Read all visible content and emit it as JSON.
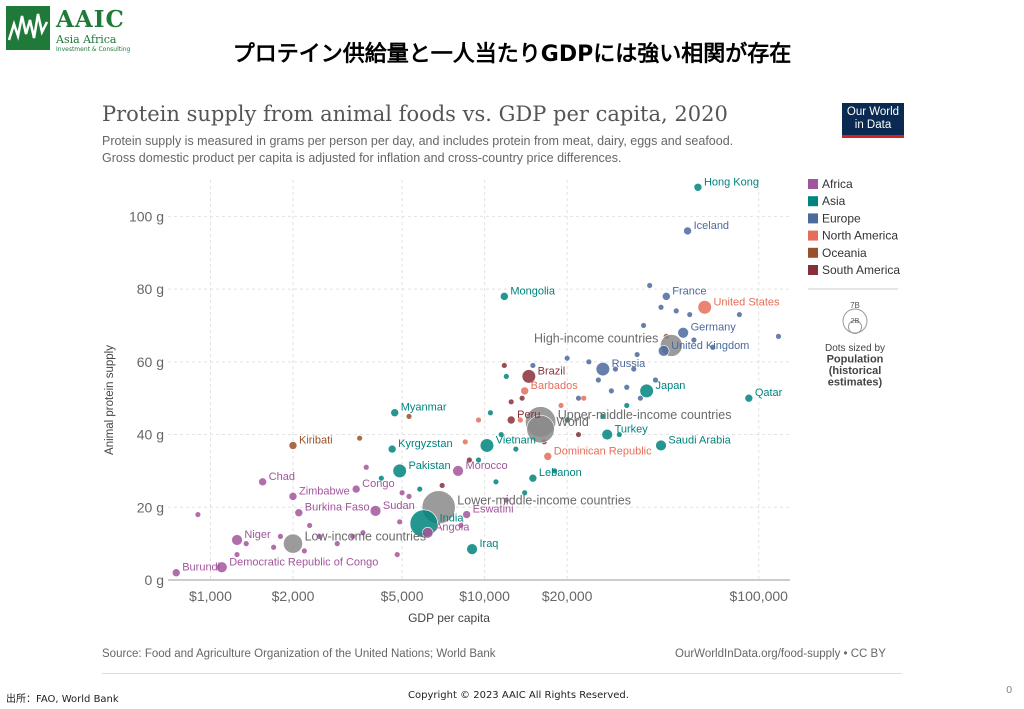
{
  "header": {
    "logo_text": "AAIC",
    "logo_sub1": "Asia Africa",
    "logo_sub2": "Investment & Consulting",
    "slide_title": "プロテイン供給量と一人当たりGDPには強い相関が存在"
  },
  "chart_header": {
    "title": "Protein supply from animal foods vs. GDP per capita, 2020",
    "subtitle1": "Protein supply is measured in grams per person per day, and includes protein from meat, dairy, eggs and seafood.",
    "subtitle2": "Gross domestic product per capita is adjusted for inflation and cross-country price differences.",
    "badge_line1": "Our World",
    "badge_line2": "in Data"
  },
  "legend": {
    "items": [
      {
        "name": "Africa",
        "color": "#a2559c"
      },
      {
        "name": "Asia",
        "color": "#00847e"
      },
      {
        "name": "Europe",
        "color": "#4c6a9c"
      },
      {
        "name": "North America",
        "color": "#e56e5a"
      },
      {
        "name": "Oceania",
        "color": "#9a5129"
      },
      {
        "name": "South America",
        "color": "#883039"
      }
    ],
    "size_big": "7B",
    "size_small": "2B",
    "size_caption1": "Dots sized by",
    "size_caption2": "Population",
    "size_caption3": "(historical",
    "size_caption4": "estimates)"
  },
  "chart_data": {
    "type": "scatter",
    "title": "Protein supply from animal foods vs. GDP per capita, 2020",
    "xlabel": "GDP per capita",
    "ylabel": "Animal protein supply",
    "x_scale": "log",
    "xlim": [
      700,
      130000
    ],
    "ylim": [
      0,
      110
    ],
    "x_ticks": [
      {
        "value": 1000,
        "label": "$1,000"
      },
      {
        "value": 2000,
        "label": "$2,000"
      },
      {
        "value": 5000,
        "label": "$5,000"
      },
      {
        "value": 10000,
        "label": "$10,000"
      },
      {
        "value": 20000,
        "label": "$20,000"
      },
      {
        "value": 100000,
        "label": "$100,000"
      }
    ],
    "y_ticks": [
      {
        "value": 0,
        "label": "0 g"
      },
      {
        "value": 20,
        "label": "20 g"
      },
      {
        "value": 40,
        "label": "40 g"
      },
      {
        "value": 60,
        "label": "60 g"
      },
      {
        "value": 80,
        "label": "80 g"
      },
      {
        "value": 100,
        "label": "100 g"
      }
    ],
    "colors": {
      "Africa": "#a2559c",
      "Asia": "#00847e",
      "Europe": "#4c6a9c",
      "North America": "#e56e5a",
      "Oceania": "#9a5129",
      "South America": "#883039",
      "Aggregate": "#8a8a8a"
    },
    "labeled_points": [
      {
        "label": "Hong Kong",
        "region": "Asia",
        "x": 60000,
        "y": 108,
        "size": 2,
        "anchor": "right"
      },
      {
        "label": "Iceland",
        "region": "Europe",
        "x": 55000,
        "y": 96,
        "size": 2,
        "anchor": "right"
      },
      {
        "label": "Mongolia",
        "region": "Asia",
        "x": 11800,
        "y": 78,
        "size": 2,
        "anchor": "right"
      },
      {
        "label": "France",
        "region": "Europe",
        "x": 46000,
        "y": 78,
        "size": 2,
        "anchor": "right"
      },
      {
        "label": "United States",
        "region": "North America",
        "x": 63500,
        "y": 75,
        "size": 4,
        "anchor": "right"
      },
      {
        "label": "Germany",
        "region": "Europe",
        "x": 53000,
        "y": 68,
        "size": 3,
        "anchor": "right"
      },
      {
        "label": "High-income countries",
        "region": "Aggregate",
        "x": 48000,
        "y": 64.5,
        "size": 7,
        "anchor": "left"
      },
      {
        "label": "United Kingdom",
        "region": "Europe",
        "x": 45000,
        "y": 63,
        "size": 3,
        "anchor": "right"
      },
      {
        "label": "Russia",
        "region": "Europe",
        "x": 27000,
        "y": 58,
        "size": 4,
        "anchor": "right"
      },
      {
        "label": "Brazil",
        "region": "South America",
        "x": 14500,
        "y": 56,
        "size": 4,
        "anchor": "right"
      },
      {
        "label": "Barbados",
        "region": "North America",
        "x": 14000,
        "y": 52,
        "size": 2,
        "anchor": "right"
      },
      {
        "label": "Japan",
        "region": "Asia",
        "x": 39000,
        "y": 52,
        "size": 4,
        "anchor": "right"
      },
      {
        "label": "Qatar",
        "region": "Asia",
        "x": 92000,
        "y": 50,
        "size": 2,
        "anchor": "right"
      },
      {
        "label": "Myanmar",
        "region": "Asia",
        "x": 4700,
        "y": 46,
        "size": 2,
        "anchor": "right"
      },
      {
        "label": "Upper-middle-income countries",
        "region": "Aggregate",
        "x": 16000,
        "y": 43.5,
        "size": 10,
        "anchor": "right"
      },
      {
        "label": "Peru",
        "region": "South America",
        "x": 12500,
        "y": 44,
        "size": 2,
        "anchor": "right"
      },
      {
        "label": "Turkey",
        "region": "Asia",
        "x": 28000,
        "y": 40,
        "size": 3,
        "anchor": "right"
      },
      {
        "label": "World",
        "region": "Aggregate",
        "x": 16000,
        "y": 41.5,
        "size": 9,
        "anchor": "right"
      },
      {
        "label": "Kiribati",
        "region": "Oceania",
        "x": 2000,
        "y": 37,
        "size": 2,
        "anchor": "right"
      },
      {
        "label": "Kyrgyzstan",
        "region": "Asia",
        "x": 4600,
        "y": 36,
        "size": 2,
        "anchor": "right"
      },
      {
        "label": "Vietnam",
        "region": "Asia",
        "x": 10200,
        "y": 37,
        "size": 4,
        "anchor": "right"
      },
      {
        "label": "Saudi Arabia",
        "region": "Asia",
        "x": 44000,
        "y": 37,
        "size": 3,
        "anchor": "right"
      },
      {
        "label": "Lower-middle-income countries",
        "region": "Aggregate",
        "x": 6800,
        "y": 20,
        "size": 11,
        "anchor": "right"
      },
      {
        "label": "Dominican Republic",
        "region": "North America",
        "x": 17000,
        "y": 34,
        "size": 2,
        "anchor": "right"
      },
      {
        "label": "Pakistan",
        "region": "Asia",
        "x": 4900,
        "y": 30,
        "size": 4,
        "anchor": "right"
      },
      {
        "label": "Morocco",
        "region": "Africa",
        "x": 8000,
        "y": 30,
        "size": 3,
        "anchor": "right"
      },
      {
        "label": "Lebanon",
        "region": "Asia",
        "x": 15000,
        "y": 28,
        "size": 2,
        "anchor": "right"
      },
      {
        "label": "Chad",
        "region": "Africa",
        "x": 1550,
        "y": 27,
        "size": 2,
        "anchor": "right"
      },
      {
        "label": "Congo",
        "region": "Africa",
        "x": 3400,
        "y": 25,
        "size": 2,
        "anchor": "right"
      },
      {
        "label": "Zimbabwe",
        "region": "Africa",
        "x": 2000,
        "y": 23,
        "size": 2,
        "anchor": "right"
      },
      {
        "label": "Burkina Faso",
        "region": "Africa",
        "x": 2100,
        "y": 18.5,
        "size": 2,
        "anchor": "right"
      },
      {
        "label": "Sudan",
        "region": "Africa",
        "x": 4000,
        "y": 19,
        "size": 3,
        "anchor": "right"
      },
      {
        "label": "Eswatini",
        "region": "Africa",
        "x": 8600,
        "y": 18,
        "size": 2,
        "anchor": "right"
      },
      {
        "label": "India",
        "region": "Asia",
        "x": 6000,
        "y": 15.5,
        "size": 9,
        "anchor": "right"
      },
      {
        "label": "Low-income countries",
        "region": "Aggregate",
        "x": 2000,
        "y": 10,
        "size": 6,
        "anchor": "right"
      },
      {
        "label": "Angola",
        "region": "Africa",
        "x": 6200,
        "y": 13,
        "size": 3,
        "anchor": "right"
      },
      {
        "label": "Niger",
        "region": "Africa",
        "x": 1250,
        "y": 11,
        "size": 3,
        "anchor": "right"
      },
      {
        "label": "Iraq",
        "region": "Asia",
        "x": 9000,
        "y": 8.5,
        "size": 3,
        "anchor": "right"
      },
      {
        "label": "Democratic Republic of Congo",
        "region": "Africa",
        "x": 1100,
        "y": 3.5,
        "size": 3,
        "anchor": "right"
      },
      {
        "label": "Burundi",
        "region": "Africa",
        "x": 750,
        "y": 2,
        "size": 2,
        "anchor": "right"
      }
    ],
    "other_points": [
      {
        "region": "Africa",
        "x": 900,
        "y": 18
      },
      {
        "region": "Africa",
        "x": 1250,
        "y": 7
      },
      {
        "region": "Africa",
        "x": 1350,
        "y": 10
      },
      {
        "region": "Africa",
        "x": 1700,
        "y": 9
      },
      {
        "region": "Africa",
        "x": 1800,
        "y": 12
      },
      {
        "region": "Africa",
        "x": 2200,
        "y": 8
      },
      {
        "region": "Africa",
        "x": 2300,
        "y": 15
      },
      {
        "region": "Africa",
        "x": 2500,
        "y": 12
      },
      {
        "region": "Africa",
        "x": 2900,
        "y": 10
      },
      {
        "region": "Africa",
        "x": 3300,
        "y": 12
      },
      {
        "region": "Africa",
        "x": 3600,
        "y": 13
      },
      {
        "region": "Africa",
        "x": 4800,
        "y": 7
      },
      {
        "region": "Africa",
        "x": 4900,
        "y": 16
      },
      {
        "region": "Africa",
        "x": 5300,
        "y": 23
      },
      {
        "region": "Africa",
        "x": 3700,
        "y": 31
      },
      {
        "region": "Africa",
        "x": 5000,
        "y": 24
      },
      {
        "region": "Africa",
        "x": 8200,
        "y": 15
      },
      {
        "region": "Africa",
        "x": 12000,
        "y": 22
      },
      {
        "region": "Asia",
        "x": 4200,
        "y": 28
      },
      {
        "region": "Asia",
        "x": 5800,
        "y": 25
      },
      {
        "region": "Asia",
        "x": 11500,
        "y": 40
      },
      {
        "region": "Asia",
        "x": 13000,
        "y": 36
      },
      {
        "region": "Asia",
        "x": 11000,
        "y": 27
      },
      {
        "region": "Asia",
        "x": 20000,
        "y": 44
      },
      {
        "region": "Asia",
        "x": 27000,
        "y": 45
      },
      {
        "region": "Asia",
        "x": 31000,
        "y": 40
      },
      {
        "region": "Asia",
        "x": 33000,
        "y": 48
      },
      {
        "region": "Asia",
        "x": 12000,
        "y": 56
      },
      {
        "region": "Asia",
        "x": 9500,
        "y": 33
      },
      {
        "region": "Asia",
        "x": 18000,
        "y": 30
      },
      {
        "region": "Asia",
        "x": 14000,
        "y": 24
      },
      {
        "region": "Asia",
        "x": 10500,
        "y": 46
      },
      {
        "region": "Europe",
        "x": 15000,
        "y": 59
      },
      {
        "region": "Europe",
        "x": 20000,
        "y": 61
      },
      {
        "region": "Europe",
        "x": 24000,
        "y": 60
      },
      {
        "region": "Europe",
        "x": 26000,
        "y": 55
      },
      {
        "region": "Europe",
        "x": 30000,
        "y": 58
      },
      {
        "region": "Europe",
        "x": 33000,
        "y": 53
      },
      {
        "region": "Europe",
        "x": 36000,
        "y": 62
      },
      {
        "region": "Europe",
        "x": 38000,
        "y": 70
      },
      {
        "region": "Europe",
        "x": 40000,
        "y": 81
      },
      {
        "region": "Europe",
        "x": 44000,
        "y": 75
      },
      {
        "region": "Europe",
        "x": 50000,
        "y": 74
      },
      {
        "region": "Europe",
        "x": 56000,
        "y": 73
      },
      {
        "region": "Europe",
        "x": 58000,
        "y": 66
      },
      {
        "region": "Europe",
        "x": 68000,
        "y": 64
      },
      {
        "region": "Europe",
        "x": 85000,
        "y": 73
      },
      {
        "region": "Europe",
        "x": 118000,
        "y": 67
      },
      {
        "region": "Europe",
        "x": 35000,
        "y": 58
      },
      {
        "region": "Europe",
        "x": 42000,
        "y": 55
      },
      {
        "region": "Europe",
        "x": 22000,
        "y": 50
      },
      {
        "region": "Europe",
        "x": 29000,
        "y": 52
      },
      {
        "region": "Europe",
        "x": 37000,
        "y": 50
      },
      {
        "region": "North America",
        "x": 9500,
        "y": 44
      },
      {
        "region": "North America",
        "x": 8500,
        "y": 38
      },
      {
        "region": "North America",
        "x": 19000,
        "y": 48
      },
      {
        "region": "North America",
        "x": 23000,
        "y": 50
      },
      {
        "region": "North America",
        "x": 13500,
        "y": 44
      },
      {
        "region": "Oceania",
        "x": 3500,
        "y": 39
      },
      {
        "region": "Oceania",
        "x": 5300,
        "y": 45
      },
      {
        "region": "Oceania",
        "x": 46000,
        "y": 67
      },
      {
        "region": "South America",
        "x": 8800,
        "y": 33
      },
      {
        "region": "South America",
        "x": 11800,
        "y": 59
      },
      {
        "region": "South America",
        "x": 13700,
        "y": 50
      },
      {
        "region": "South America",
        "x": 15500,
        "y": 45
      },
      {
        "region": "South America",
        "x": 22000,
        "y": 40
      },
      {
        "region": "South America",
        "x": 16500,
        "y": 38
      },
      {
        "region": "South America",
        "x": 12500,
        "y": 49
      },
      {
        "region": "South America",
        "x": 7000,
        "y": 26
      }
    ]
  },
  "footer": {
    "source": "Source: Food and Agriculture Organization of the United Nations; World Bank",
    "url": "OurWorldInData.org/food-supply • CC BY",
    "left_note": "出所：FAO, World Bank",
    "copyright": "Copyright © 2023 AAIC All Rights Reserved.",
    "page_num": "0"
  }
}
